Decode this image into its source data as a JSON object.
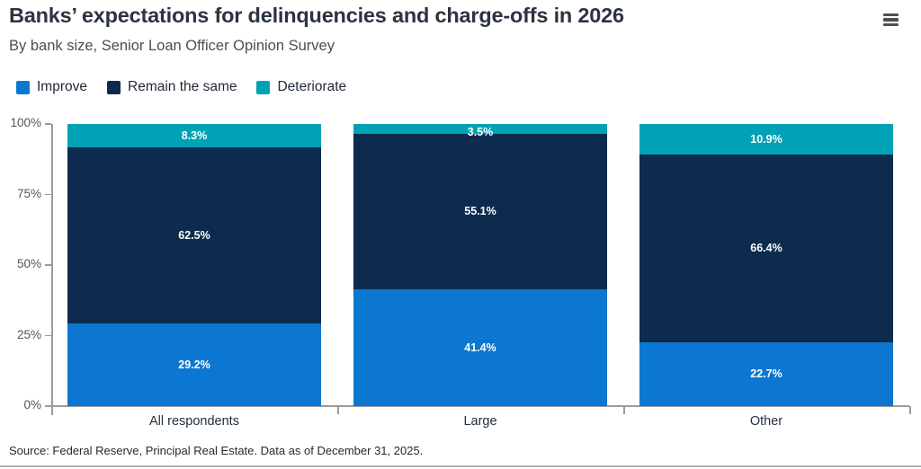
{
  "header": {
    "title": "Banks’ expectations for delinquencies and charge-offs in 2026",
    "subtitle": "By bank size, Senior Loan Officer Opinion Survey",
    "menu_icon": "hamburger-menu"
  },
  "chart_data": {
    "type": "bar",
    "stacked": true,
    "orientation": "vertical",
    "title": "Banks’ expectations for delinquencies and charge-offs in 2026",
    "subtitle": "By bank size, Senior Loan Officer Opinion Survey",
    "categories": [
      "All respondents",
      "Large",
      "Other"
    ],
    "series": [
      {
        "name": "Improve",
        "color": "#0b77d0",
        "values": [
          29.2,
          41.4,
          22.7
        ]
      },
      {
        "name": "Remain the same",
        "color": "#0d2b4e",
        "values": [
          62.5,
          55.1,
          66.4
        ]
      },
      {
        "name": "Deteriorate",
        "color": "#00a3b5",
        "values": [
          8.3,
          3.5,
          10.9
        ]
      }
    ],
    "value_suffix": "%",
    "ylim": [
      0,
      100
    ],
    "yticks": [
      "0%",
      "25%",
      "50%",
      "75%",
      "100%"
    ],
    "grid": false,
    "legend_position": "top-left",
    "xlabel": "",
    "ylabel": ""
  },
  "footer": {
    "source": "Source: Federal Reserve, Principal Real Estate. Data as of December 31, 2025."
  },
  "colors": {
    "improve_blue": "#0b77d0",
    "remain_navy": "#0d2b4e",
    "deteriorate_teal": "#00a3b5",
    "axis_gray": "#9b9b9b",
    "title_text": "#2c3340",
    "subtitle_text": "#4e4e50",
    "bar_label_text": "#ffffff"
  }
}
